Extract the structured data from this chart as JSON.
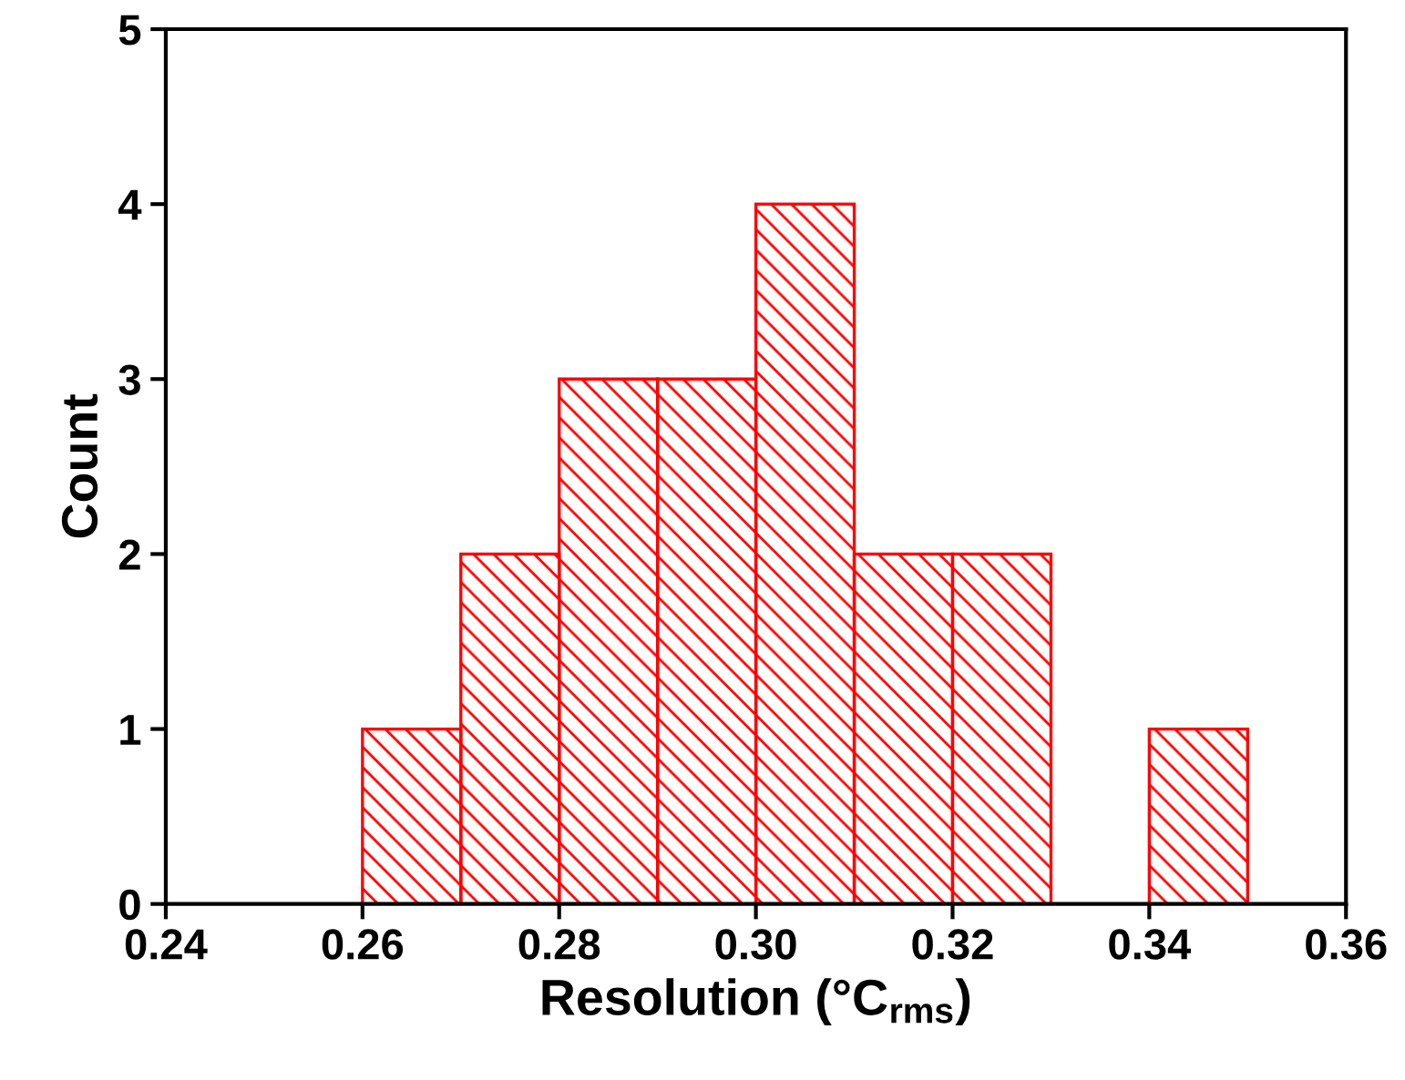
{
  "chart_data": {
    "type": "histogram",
    "xlabel": "Resolution (°C$_{rms}$)",
    "ylabel": "Count",
    "bins": [
      0.26,
      0.27,
      0.28,
      0.29,
      0.3,
      0.31,
      0.32,
      0.33,
      0.34,
      0.35
    ],
    "values": [
      1,
      2,
      3,
      3,
      4,
      2,
      2,
      0,
      1
    ],
    "color": "#ff0000",
    "xlim": [
      0.24,
      0.36
    ],
    "xticks": [
      0.24,
      0.26,
      0.28,
      {
        "value": 0.3,
        "label": "0.30"
      },
      0.32,
      0.34,
      0.36
    ],
    "ylim": [
      0,
      5
    ],
    "yticks": [
      0,
      1,
      2,
      3,
      4,
      5
    ],
    "grid": false,
    "legend": false
  }
}
